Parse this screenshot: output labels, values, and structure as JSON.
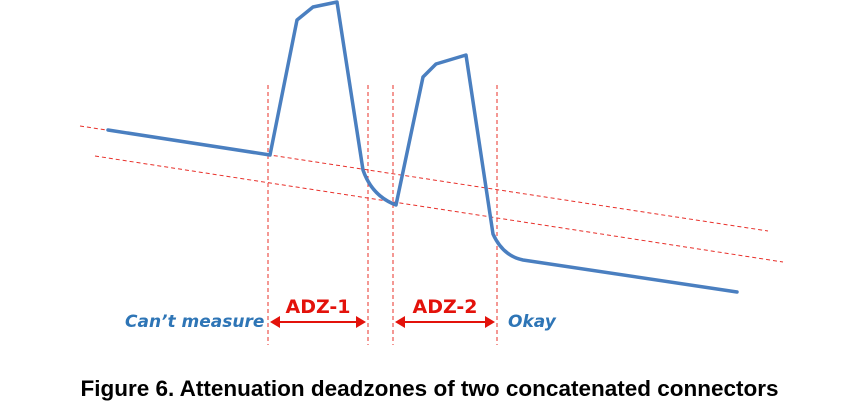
{
  "labels": {
    "cant_measure": "Can’t measure",
    "adz1": "ADZ-1",
    "adz2": "ADZ-2",
    "okay": "Okay"
  },
  "caption": "Figure 6.  Attenuation deadzones of two concatenated connectors",
  "colors": {
    "trace": "#4a7fc0",
    "reference": "#e8302a",
    "label_blue": "#2e75b6",
    "label_red": "#e3120b"
  }
}
